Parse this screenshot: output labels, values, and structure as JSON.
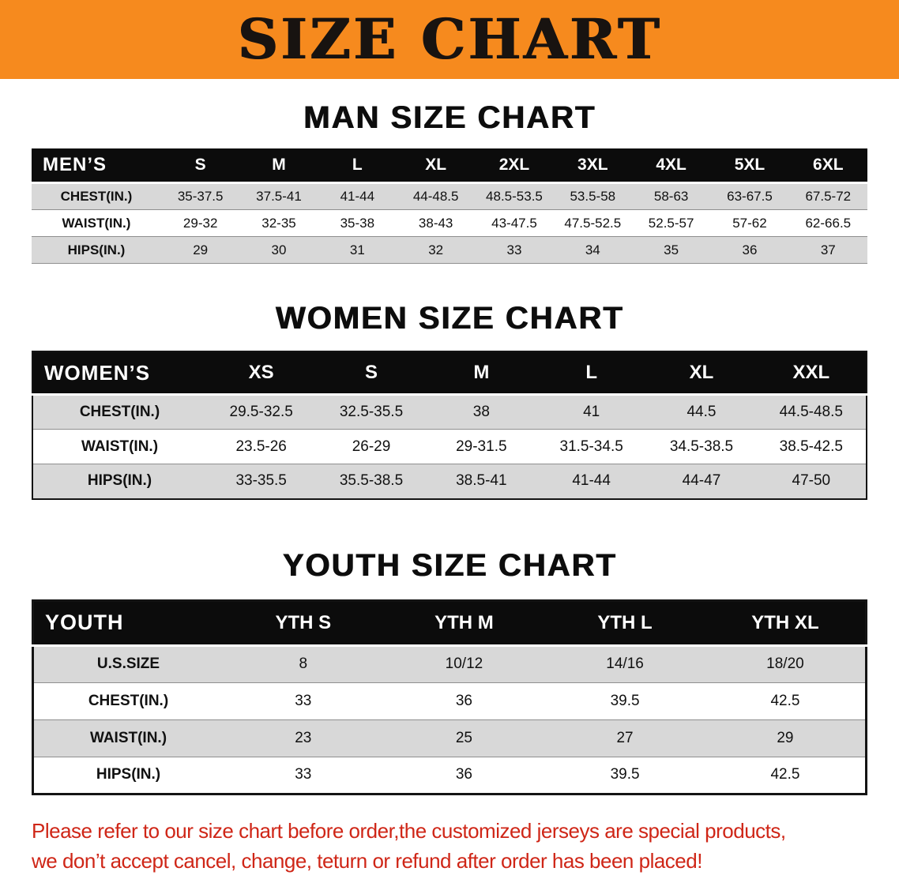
{
  "banner": {
    "title": "SIZE CHART",
    "bg_color": "#f68a1e",
    "text_color": "#181310"
  },
  "chart_data": [
    {
      "type": "table",
      "title": "MAN SIZE CHART",
      "corner_label": "MEN’S",
      "columns": [
        "S",
        "M",
        "L",
        "XL",
        "2XL",
        "3XL",
        "4XL",
        "5XL",
        "6XL"
      ],
      "rows": [
        {
          "label": "CHEST(IN.)",
          "values": [
            "35-37.5",
            "37.5-41",
            "41-44",
            "44-48.5",
            "48.5-53.5",
            "53.5-58",
            "58-63",
            "63-67.5",
            "67.5-72"
          ]
        },
        {
          "label": "WAIST(IN.)",
          "values": [
            "29-32",
            "32-35",
            "35-38",
            "38-43",
            "43-47.5",
            "47.5-52.5",
            "52.5-57",
            "57-62",
            "62-66.5"
          ]
        },
        {
          "label": "HIPS(IN.)",
          "values": [
            "29",
            "30",
            "31",
            "32",
            "33",
            "34",
            "35",
            "36",
            "37"
          ]
        }
      ]
    },
    {
      "type": "table",
      "title": "WOMEN SIZE CHART",
      "corner_label": "WOMEN’S",
      "columns": [
        "XS",
        "S",
        "M",
        "L",
        "XL",
        "XXL"
      ],
      "rows": [
        {
          "label": "CHEST(IN.)",
          "values": [
            "29.5-32.5",
            "32.5-35.5",
            "38",
            "41",
            "44.5",
            "44.5-48.5"
          ]
        },
        {
          "label": "WAIST(IN.)",
          "values": [
            "23.5-26",
            "26-29",
            "29-31.5",
            "31.5-34.5",
            "34.5-38.5",
            "38.5-42.5"
          ]
        },
        {
          "label": "HIPS(IN.)",
          "values": [
            "33-35.5",
            "35.5-38.5",
            "38.5-41",
            "41-44",
            "44-47",
            "47-50"
          ]
        }
      ]
    },
    {
      "type": "table",
      "title": "YOUTH SIZE CHART",
      "corner_label": "YOUTH",
      "columns": [
        "YTH S",
        "YTH M",
        "YTH L",
        "YTH XL"
      ],
      "rows": [
        {
          "label": "U.S.SIZE",
          "values": [
            "8",
            "10/12",
            "14/16",
            "18/20"
          ]
        },
        {
          "label": "CHEST(IN.)",
          "values": [
            "33",
            "36",
            "39.5",
            "42.5"
          ]
        },
        {
          "label": "WAIST(IN.)",
          "values": [
            "23",
            "25",
            "27",
            "29"
          ]
        },
        {
          "label": "HIPS(IN.)",
          "values": [
            "33",
            "36",
            "39.5",
            "42.5"
          ]
        }
      ]
    }
  ],
  "footer": {
    "line1": "Please refer to our size chart before order,the customized jerseys are special products,",
    "line2": "we don’t accept cancel, change, teturn or refund after order has been placed!",
    "text_color": "#cf2617"
  }
}
